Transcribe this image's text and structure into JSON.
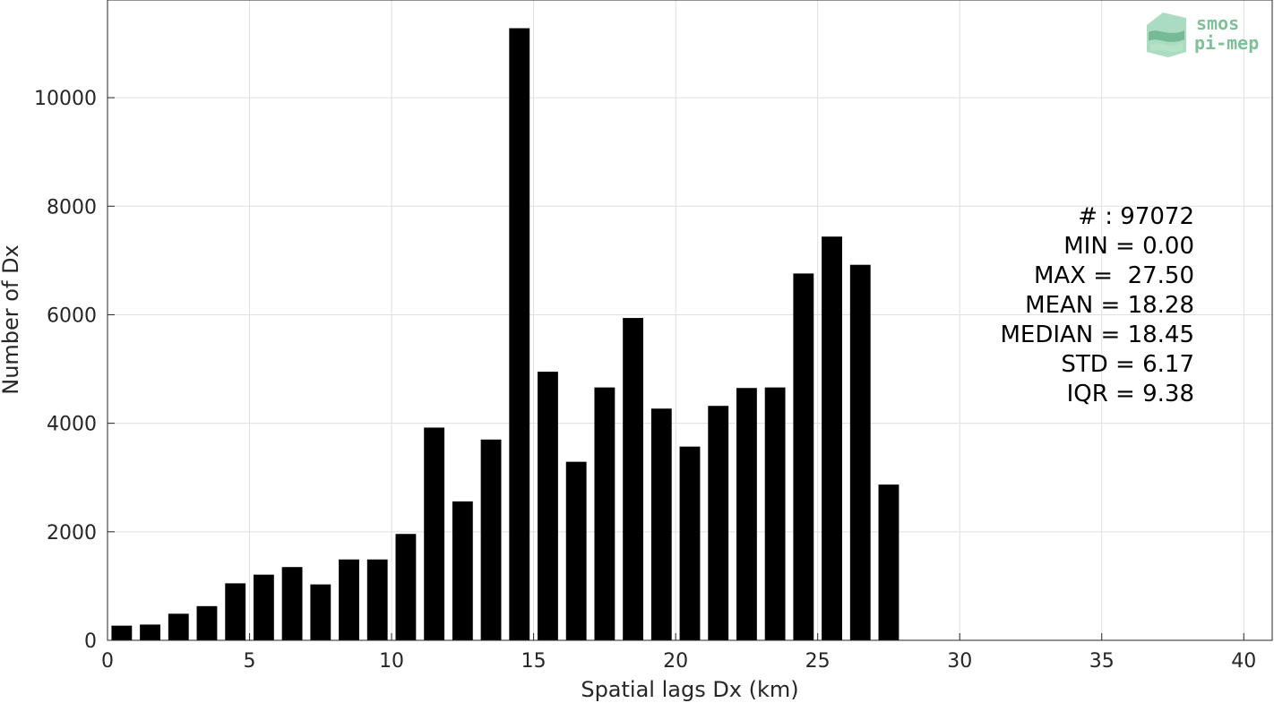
{
  "chart_data": {
    "type": "bar",
    "xlabel": "Spatial lags Dx (km)",
    "ylabel": "Number of Dx",
    "xlim": [
      0,
      41
    ],
    "ylim": [
      0,
      11800
    ],
    "xticks": [
      0,
      5,
      10,
      15,
      20,
      25,
      30,
      35,
      40
    ],
    "yticks": [
      0,
      2000,
      4000,
      6000,
      8000,
      10000
    ],
    "grid": true,
    "bar_color": "#000000",
    "x": [
      0.5,
      1.5,
      2.5,
      3.5,
      4.5,
      5.5,
      6.5,
      7.5,
      8.5,
      9.5,
      10.5,
      11.5,
      12.5,
      13.5,
      14.5,
      15.5,
      16.5,
      17.5,
      18.5,
      19.5,
      20.5,
      21.5,
      22.5,
      23.5,
      24.5,
      25.5,
      26.5,
      27.5
    ],
    "values": [
      270,
      290,
      490,
      630,
      1050,
      1210,
      1350,
      1030,
      1490,
      1490,
      1960,
      3920,
      2560,
      3700,
      11280,
      4950,
      3290,
      4660,
      5940,
      4270,
      3570,
      4320,
      4650,
      4660,
      6760,
      7440,
      6920,
      2870
    ]
  },
  "stats": [
    "# : 97072",
    "MIN = 0.00",
    "MAX =  27.50",
    "MEAN = 18.28",
    "MEDIAN = 18.45",
    "STD = 6.17",
    "IQR = 9.38"
  ],
  "logo": {
    "line1": "smos",
    "line2": "pi-mep",
    "color": "#7fbf9a"
  }
}
